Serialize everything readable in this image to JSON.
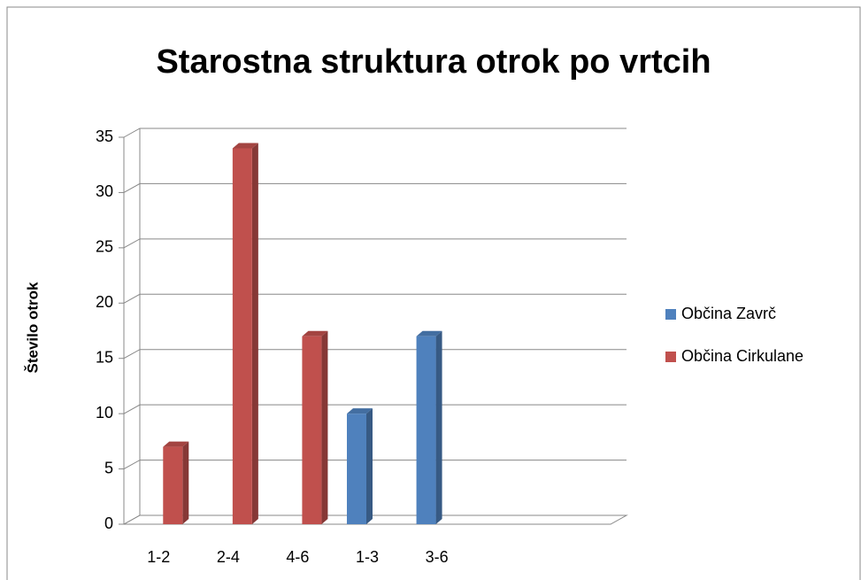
{
  "chart_data": {
    "type": "bar",
    "title": "Starostna struktura otrok po vrtcih",
    "y_label": "Število otrok",
    "categories": [
      "1-2",
      "2-4",
      "4-6",
      "1-3",
      "3-6",
      null,
      null
    ],
    "series": [
      {
        "name": "Občina Zavrč",
        "color": "#4f81bd",
        "values": [
          null,
          null,
          null,
          10,
          17,
          null,
          null
        ]
      },
      {
        "name": "Občina Cirkulane",
        "color": "#c0504d",
        "values": [
          7,
          34,
          17,
          null,
          null,
          null,
          null
        ]
      }
    ],
    "ylim": [
      0,
      35
    ],
    "yticks": [
      0,
      5,
      10,
      15,
      20,
      25,
      30,
      35
    ],
    "grid": true,
    "legend": "right"
  }
}
